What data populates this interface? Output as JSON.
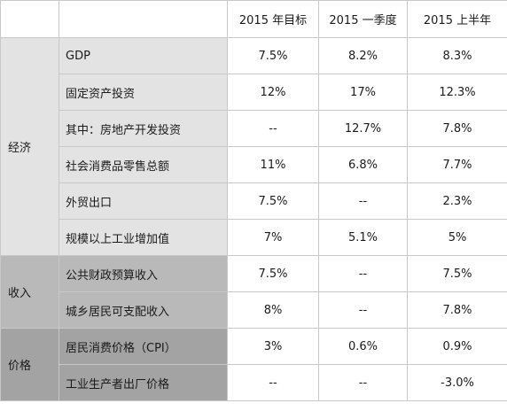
{
  "columns": [
    "2015 年目标",
    "2015 一季度",
    "2015 上半年"
  ],
  "groups": [
    {
      "category": "经济",
      "color": "#e3e3e3",
      "rows": [
        {
          "label": "GDP",
          "values": [
            "7.5%",
            "8.2%",
            "8.3%"
          ]
        },
        {
          "label": "固定资产投资",
          "values": [
            "12%",
            "17%",
            "12.3%"
          ]
        },
        {
          "label": "其中：房地产开发投资",
          "values": [
            "--",
            "12.7%",
            "7.8%"
          ]
        },
        {
          "label": "社会消费品零售总额",
          "values": [
            "11%",
            "6.8%",
            "7.7%"
          ]
        },
        {
          "label": "外贸出口",
          "values": [
            "7.5%",
            "--",
            "2.3%"
          ]
        },
        {
          "label": "规模以上工业增加值",
          "values": [
            "7%",
            "5.1%",
            "5%"
          ]
        }
      ]
    },
    {
      "category": "收入",
      "color": "#b9b9b9",
      "rows": [
        {
          "label": "公共财政预算收入",
          "values": [
            "7.5%",
            "--",
            "7.5%"
          ]
        },
        {
          "label": "城乡居民可支配收入",
          "values": [
            "8%",
            "--",
            "7.8%"
          ]
        }
      ]
    },
    {
      "category": "价格",
      "color": "#a3a3a3",
      "rows": [
        {
          "label": "居民消费价格（CPI）",
          "values": [
            "3%",
            "0.6%",
            "0.9%"
          ]
        },
        {
          "label": "工业生产者出厂价格",
          "values": [
            "--",
            "--",
            "-3.0%"
          ]
        }
      ]
    }
  ]
}
